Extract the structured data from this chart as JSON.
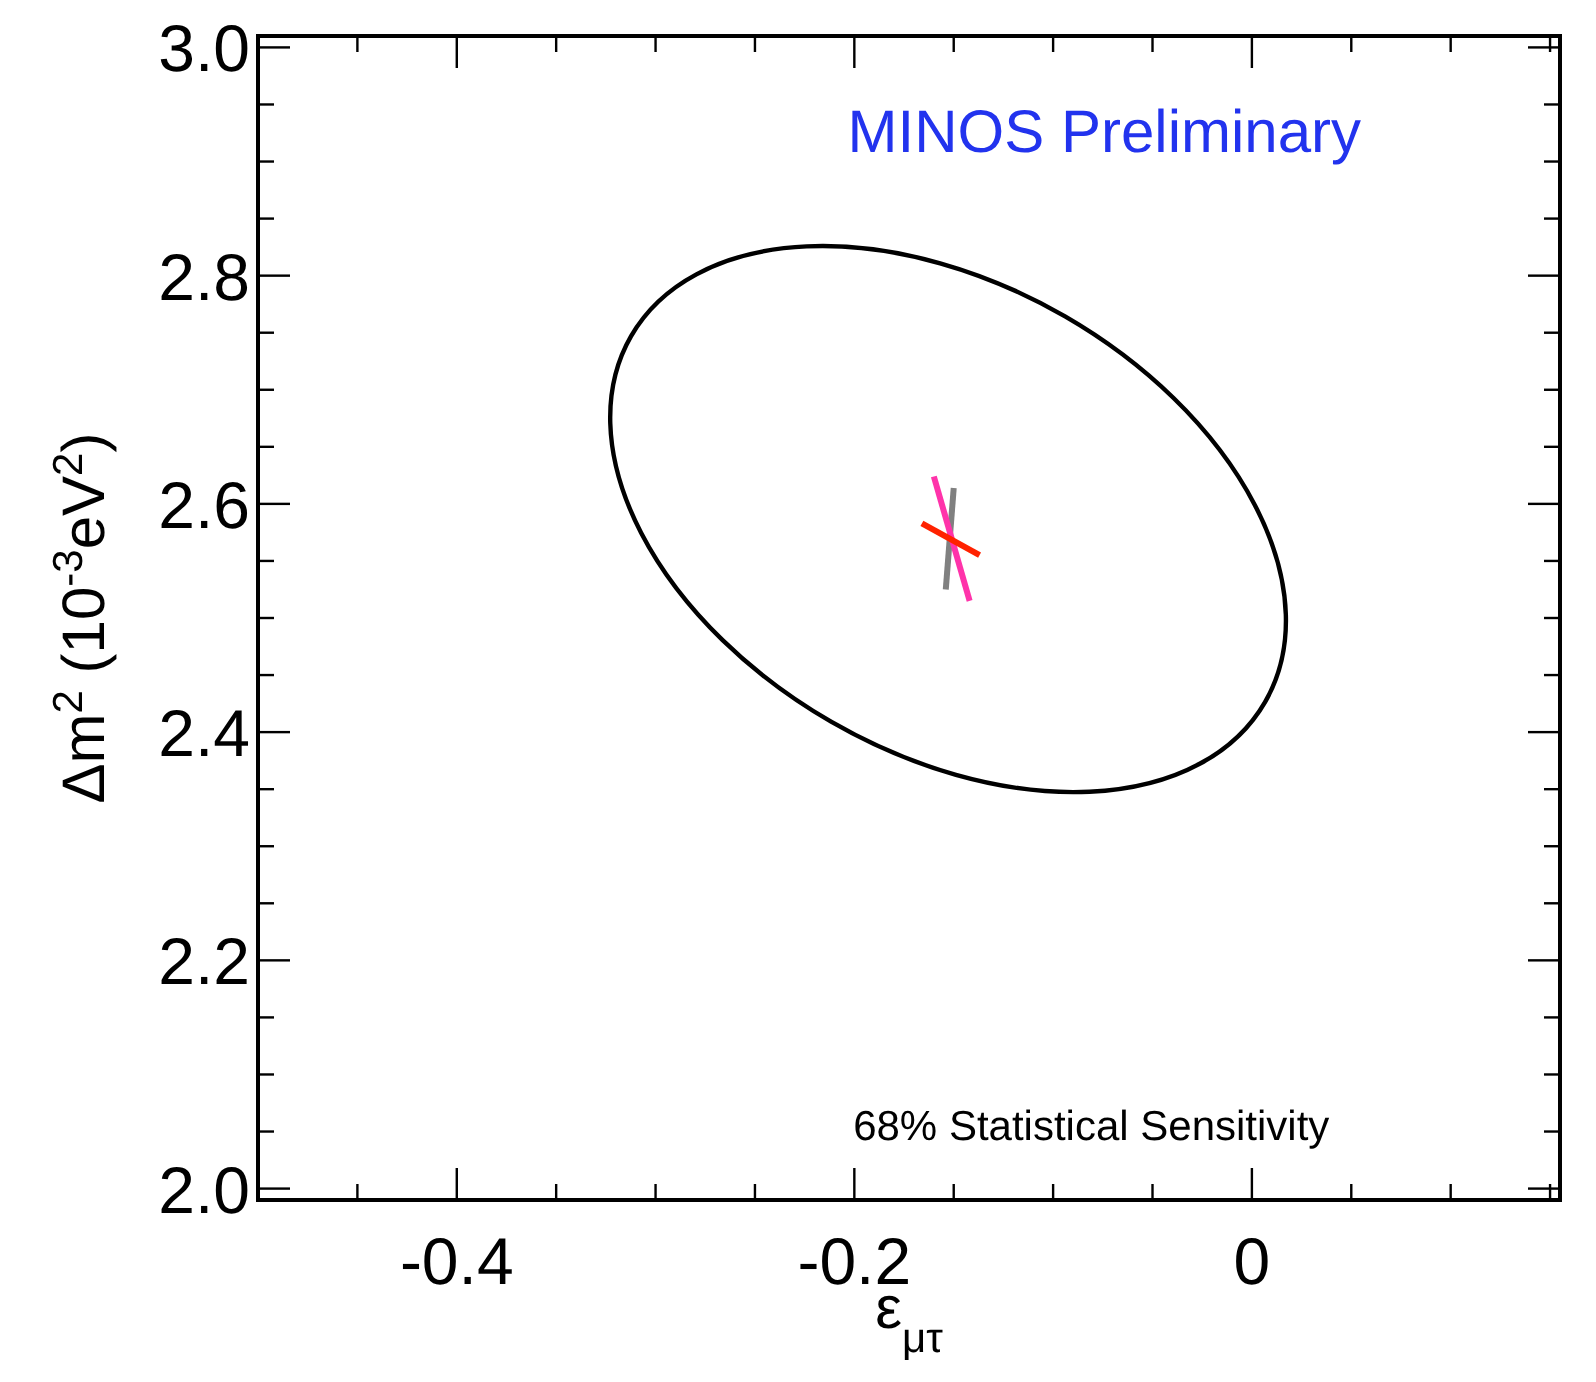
{
  "chart_data": {
    "type": "line",
    "title": "MINOS Preliminary",
    "xlabel": "ε$_{μτ}$",
    "ylabel": "Δm$^{2}$ (10$^{-3}$eV$^{2}$)",
    "annotations": [
      "68% Statistical Sensitivity"
    ],
    "xlim": [
      -0.5,
      0.155
    ],
    "ylim": [
      1.99,
      3.01
    ],
    "xticks": [
      {
        "value": -0.45,
        "label": null
      },
      -0.4,
      {
        "value": -0.35,
        "label": null
      },
      {
        "value": -0.3,
        "label": null
      },
      {
        "value": -0.25,
        "label": null
      },
      -0.2,
      {
        "value": -0.15,
        "label": null
      },
      {
        "value": -0.1,
        "label": null
      },
      {
        "value": -0.05,
        "label": null
      },
      0,
      {
        "value": 0.05,
        "label": null
      },
      {
        "value": 0.1,
        "label": null
      },
      {
        "value": 0.15,
        "label": null
      }
    ],
    "yticks": [
      {
        "value": 2.0,
        "label": "2.0"
      },
      {
        "value": 2.05,
        "label": null
      },
      {
        "value": 2.1,
        "label": null
      },
      {
        "value": 2.15,
        "label": null
      },
      {
        "value": 2.2,
        "label": "2.2"
      },
      {
        "value": 2.25,
        "label": null
      },
      {
        "value": 2.3,
        "label": null
      },
      {
        "value": 2.35,
        "label": null
      },
      {
        "value": 2.4,
        "label": "2.4"
      },
      {
        "value": 2.45,
        "label": null
      },
      {
        "value": 2.5,
        "label": null
      },
      {
        "value": 2.55,
        "label": null
      },
      {
        "value": 2.6,
        "label": "2.6"
      },
      {
        "value": 2.65,
        "label": null
      },
      {
        "value": 2.7,
        "label": null
      },
      {
        "value": 2.75,
        "label": null
      },
      {
        "value": 2.8,
        "label": "2.8"
      },
      {
        "value": 2.85,
        "label": null
      },
      {
        "value": 2.9,
        "label": null
      },
      {
        "value": 2.95,
        "label": null
      },
      {
        "value": 3.0,
        "label": "3.0"
      }
    ],
    "grid": false,
    "marker": "none",
    "line_style": "solid",
    "series": [
      {
        "color": "#808080",
        "x": [
          -0.15,
          -0.154
        ],
        "values": [
          2.614,
          2.525
        ]
      },
      {
        "color": "#ff33aa",
        "x": [
          -0.16,
          -0.142
        ],
        "values": [
          2.624,
          2.515
        ]
      },
      {
        "color": "#ff2200",
        "x": [
          -0.166,
          -0.137
        ],
        "values": [
          2.583,
          2.555
        ]
      }
    ]
  }
}
